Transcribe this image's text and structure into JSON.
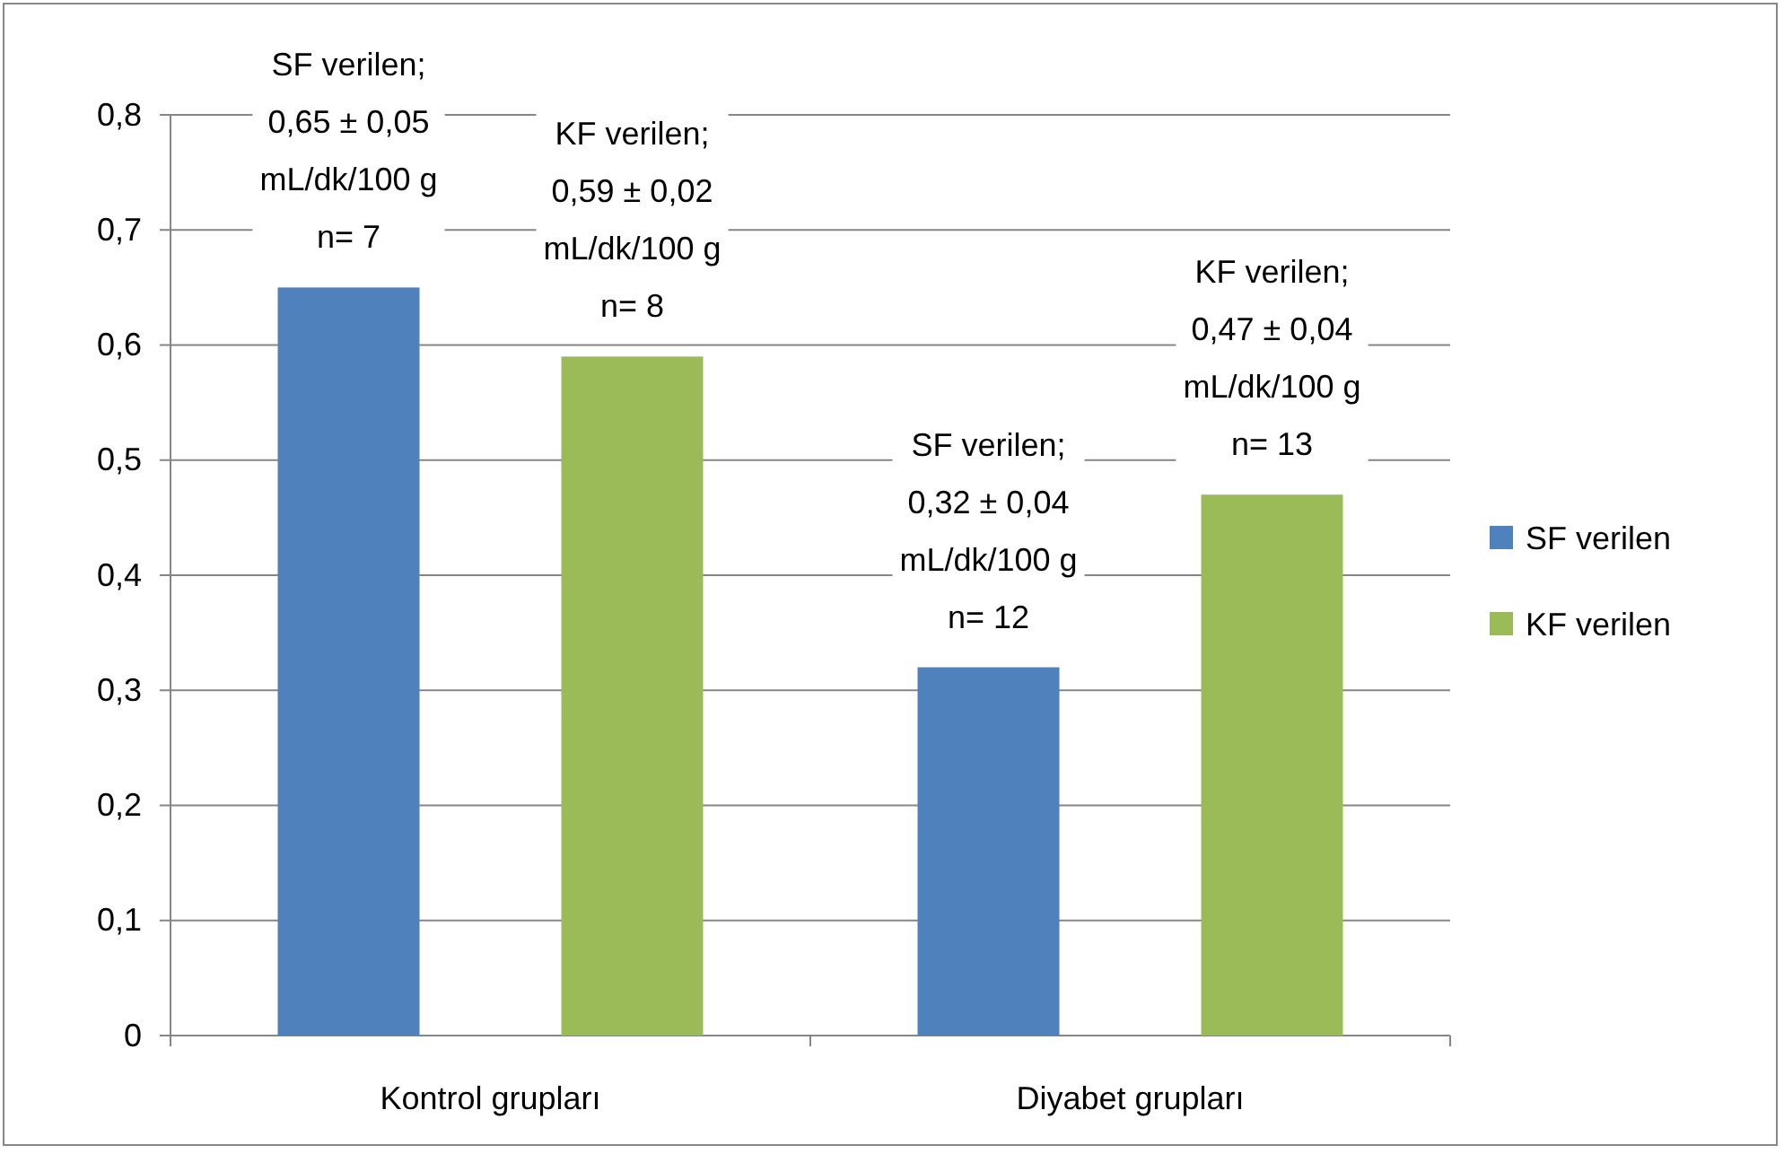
{
  "chart_data": {
    "type": "bar",
    "categories": [
      "Kontrol grupları",
      "Diyabet grupları"
    ],
    "series": [
      {
        "name": "SF verilen",
        "color": "#4f81bd",
        "values": [
          0.65,
          0.32
        ],
        "value_labels": [
          "SF verilen;\n0,65 ± 0,05\nmL/dk/100 g\nn= 7",
          "SF verilen;\n0,32 ± 0,04\nmL/dk/100 g\nn= 12"
        ]
      },
      {
        "name": "KF verilen",
        "color": "#9bbb59",
        "values": [
          0.59,
          0.47
        ],
        "value_labels": [
          "KF verilen;\n0,59 ± 0,02\nmL/dk/100 g\nn= 8",
          "KF verilen;\n0,47 ± 0,04\nmL/dk/100 g\nn= 13"
        ]
      }
    ],
    "ylim": [
      0,
      0.8
    ],
    "yticks": [
      0,
      {
        "value": 0.1,
        "label": "0,1"
      },
      {
        "value": 0.2,
        "label": "0,2"
      },
      {
        "value": 0.3,
        "label": "0,3"
      },
      {
        "value": 0.4,
        "label": "0,4"
      },
      {
        "value": 0.5,
        "label": "0,5"
      },
      {
        "value": 0.6,
        "label": "0,6"
      },
      {
        "value": 0.7,
        "label": "0,7"
      },
      {
        "value": 0.8,
        "label": "0,8"
      }
    ],
    "grid": "y",
    "legend": "right"
  }
}
